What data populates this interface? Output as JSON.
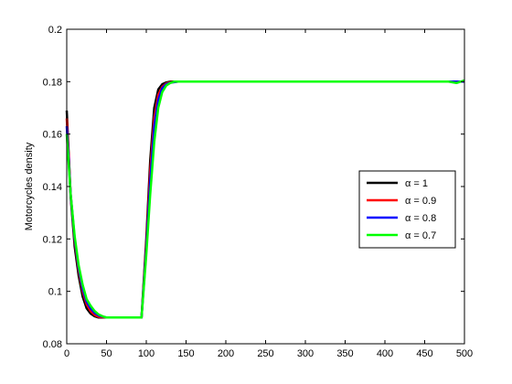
{
  "chart_data": {
    "type": "line",
    "title": "",
    "xlabel": "",
    "ylabel": "Motorcycles density",
    "xlim": [
      0,
      500
    ],
    "ylim": [
      0.08,
      0.2
    ],
    "xticks": [
      "0",
      "50",
      "100",
      "150",
      "200",
      "250",
      "300",
      "350",
      "400",
      "450",
      "500"
    ],
    "yticks": [
      "0.08",
      "0.1",
      "0.12",
      "0.14",
      "0.16",
      "0.18",
      "0.2"
    ],
    "grid": false,
    "legend_position": "right",
    "series": [
      {
        "name": "α = 1",
        "color": "#000000",
        "points": [
          [
            0,
            0.169
          ],
          [
            5,
            0.136
          ],
          [
            10,
            0.117
          ],
          [
            15,
            0.106
          ],
          [
            20,
            0.098
          ],
          [
            25,
            0.0935
          ],
          [
            30,
            0.0915
          ],
          [
            35,
            0.0905
          ],
          [
            40,
            0.09
          ],
          [
            50,
            0.09
          ],
          [
            94,
            0.09
          ],
          [
            100,
            0.12
          ],
          [
            105,
            0.15
          ],
          [
            110,
            0.17
          ],
          [
            115,
            0.177
          ],
          [
            120,
            0.179
          ],
          [
            125,
            0.1797
          ],
          [
            130,
            0.18
          ],
          [
            140,
            0.18
          ],
          [
            200,
            0.18
          ],
          [
            500,
            0.18
          ]
        ]
      },
      {
        "name": "α = 0.9",
        "color": "#ff0000",
        "points": [
          [
            0,
            0.166
          ],
          [
            5,
            0.137
          ],
          [
            10,
            0.119
          ],
          [
            15,
            0.108
          ],
          [
            20,
            0.1
          ],
          [
            25,
            0.095
          ],
          [
            30,
            0.0925
          ],
          [
            35,
            0.091
          ],
          [
            40,
            0.0903
          ],
          [
            50,
            0.09
          ],
          [
            94,
            0.09
          ],
          [
            100,
            0.118
          ],
          [
            105,
            0.146
          ],
          [
            110,
            0.166
          ],
          [
            115,
            0.175
          ],
          [
            120,
            0.178
          ],
          [
            125,
            0.1793
          ],
          [
            130,
            0.1798
          ],
          [
            140,
            0.18
          ],
          [
            200,
            0.18
          ],
          [
            500,
            0.18
          ]
        ]
      },
      {
        "name": "α = 0.8",
        "color": "#0000ff",
        "points": [
          [
            0,
            0.163
          ],
          [
            5,
            0.137
          ],
          [
            10,
            0.12
          ],
          [
            15,
            0.109
          ],
          [
            20,
            0.101
          ],
          [
            25,
            0.096
          ],
          [
            30,
            0.0935
          ],
          [
            35,
            0.0918
          ],
          [
            40,
            0.0908
          ],
          [
            50,
            0.09
          ],
          [
            94,
            0.09
          ],
          [
            100,
            0.116
          ],
          [
            105,
            0.142
          ],
          [
            110,
            0.163
          ],
          [
            115,
            0.173
          ],
          [
            120,
            0.1775
          ],
          [
            125,
            0.179
          ],
          [
            130,
            0.1796
          ],
          [
            140,
            0.18
          ],
          [
            200,
            0.18
          ],
          [
            500,
            0.18
          ]
        ]
      },
      {
        "name": "α = 0.7",
        "color": "#00ff00",
        "points": [
          [
            0,
            0.16
          ],
          [
            5,
            0.137
          ],
          [
            10,
            0.121
          ],
          [
            15,
            0.11
          ],
          [
            20,
            0.1025
          ],
          [
            25,
            0.097
          ],
          [
            30,
            0.0945
          ],
          [
            35,
            0.0925
          ],
          [
            40,
            0.0912
          ],
          [
            45,
            0.0905
          ],
          [
            50,
            0.09
          ],
          [
            94,
            0.09
          ],
          [
            100,
            0.114
          ],
          [
            105,
            0.137
          ],
          [
            110,
            0.157
          ],
          [
            115,
            0.17
          ],
          [
            120,
            0.176
          ],
          [
            125,
            0.1785
          ],
          [
            130,
            0.1795
          ],
          [
            135,
            0.18
          ],
          [
            140,
            0.18
          ],
          [
            200,
            0.18
          ],
          [
            480,
            0.18
          ],
          [
            490,
            0.1795
          ],
          [
            500,
            0.1805
          ]
        ]
      }
    ]
  }
}
